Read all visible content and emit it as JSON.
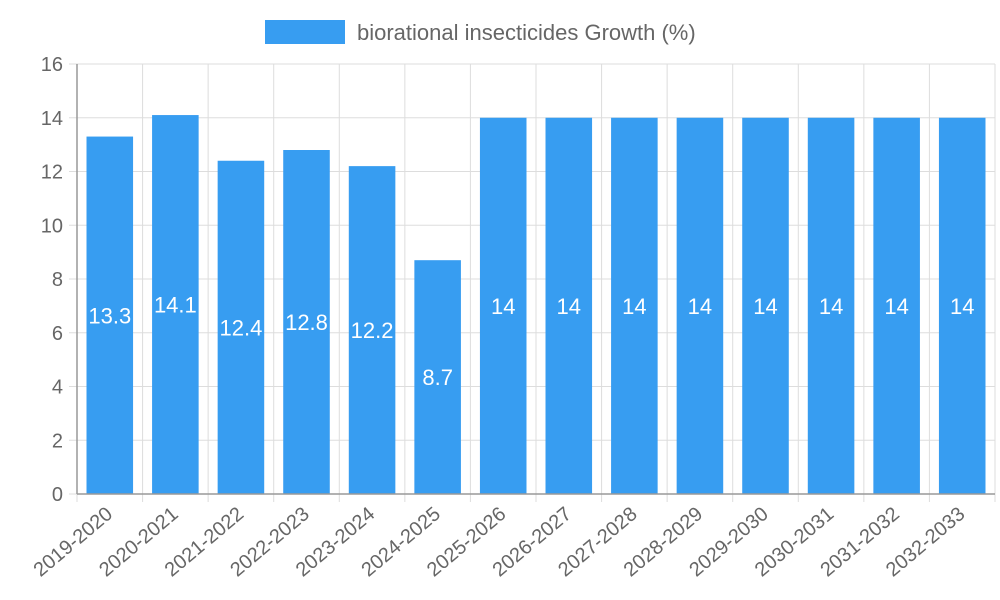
{
  "chart_data": {
    "type": "bar",
    "categories": [
      "2019-2020",
      "2020-2021",
      "2021-2022",
      "2022-2023",
      "2023-2024",
      "2024-2025",
      "2025-2026",
      "2026-2027",
      "2027-2028",
      "2028-2029",
      "2029-2030",
      "2030-2031",
      "2031-2032",
      "2032-2033"
    ],
    "series": [
      {
        "name": "biorational insecticides Growth (%)",
        "values": [
          13.3,
          14.1,
          12.4,
          12.8,
          12.2,
          8.7,
          14,
          14,
          14,
          14,
          14,
          14,
          14,
          14
        ],
        "color": "#379DF1"
      }
    ],
    "data_labels": [
      "13.3",
      "14.1",
      "12.4",
      "12.8",
      "12.2",
      "8.7",
      "14",
      "14",
      "14",
      "14",
      "14",
      "14",
      "14",
      "14"
    ],
    "yticks": [
      "0",
      "2",
      "4",
      "6",
      "8",
      "10",
      "12",
      "14",
      "16"
    ],
    "ylim": [
      0,
      16
    ],
    "xlabel": "",
    "ylabel": "",
    "grid": true,
    "legend_position": "top-center",
    "grid_color": "#dddddd",
    "axis_color": "#999999"
  }
}
